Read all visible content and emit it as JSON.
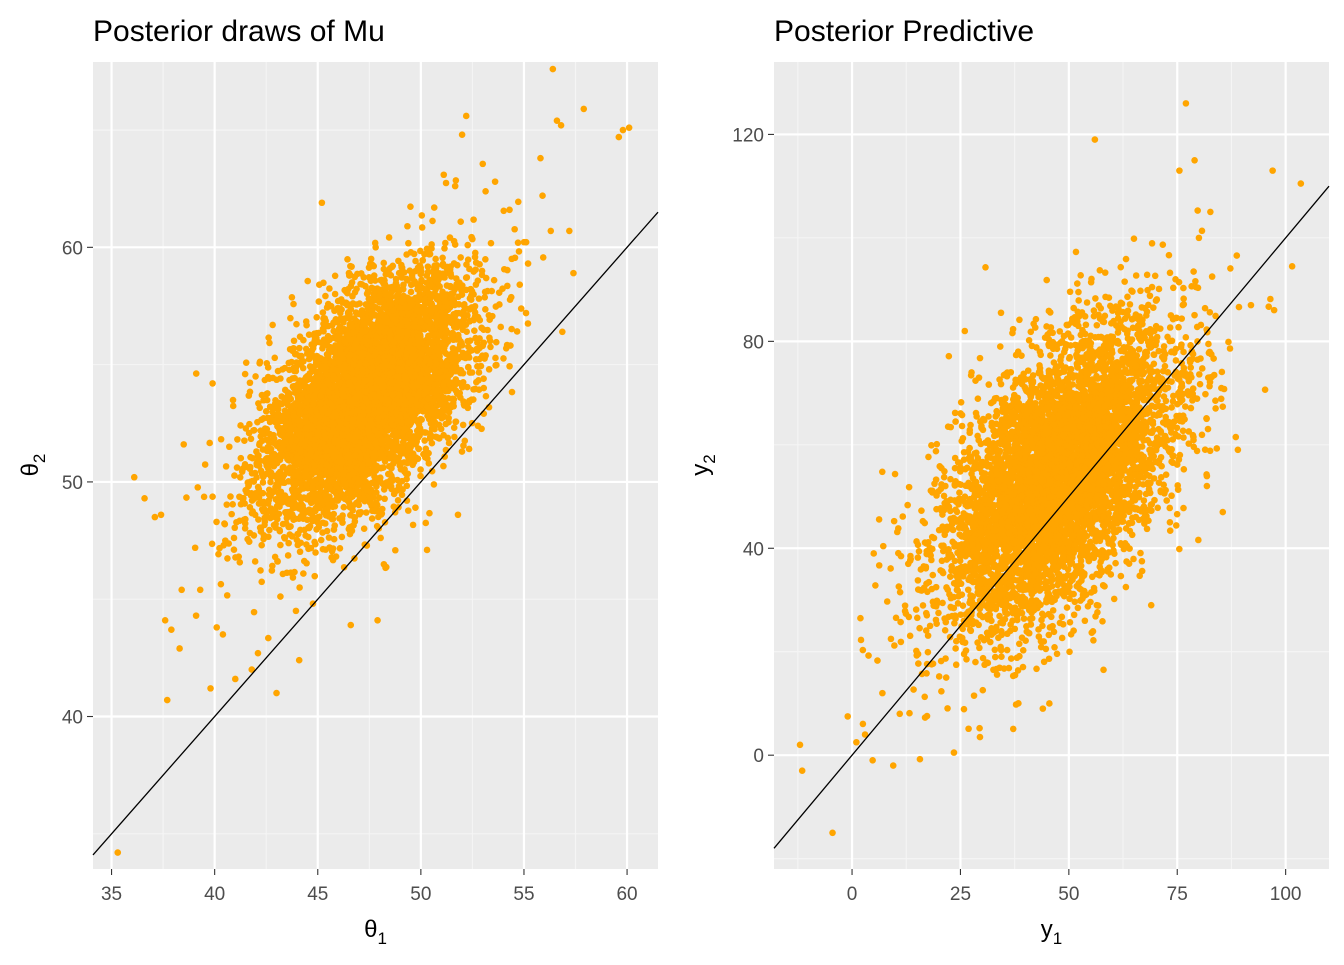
{
  "colors": {
    "panel_background": "#ebebeb",
    "grid_major": "#ffffff",
    "grid_minor": "#f5f5f5",
    "points": "#ffa500",
    "reference_line": "#000000",
    "tick_text": "#4d4d4d",
    "title_text": "#000000"
  },
  "chart_data": [
    {
      "type": "scatter",
      "title": "Posterior draws of Mu",
      "xlabel": {
        "symbol": "θ",
        "subscript": "1"
      },
      "ylabel": {
        "symbol": "θ",
        "subscript": "2"
      },
      "xlim": [
        34.1,
        61.5
      ],
      "ylim": [
        33.5,
        67.9
      ],
      "xticks": [
        35,
        40,
        45,
        50,
        55,
        60
      ],
      "yticks": [
        40,
        50,
        60
      ],
      "grid": true,
      "reference_line": {
        "intercept": 0,
        "slope": 1
      },
      "cloud": {
        "n": 6000,
        "mean_x": 47.3,
        "mean_y": 53.6,
        "sd_x": 2.5,
        "sd_y": 2.6,
        "corr": 0.55
      },
      "points": [
        {
          "x": 35.3,
          "y": 34.2
        },
        {
          "x": 36.1,
          "y": 50.2
        },
        {
          "x": 36.6,
          "y": 49.3
        },
        {
          "x": 37.1,
          "y": 48.5
        },
        {
          "x": 37.4,
          "y": 48.6
        },
        {
          "x": 37.6,
          "y": 44.1
        },
        {
          "x": 37.7,
          "y": 40.7
        },
        {
          "x": 37.9,
          "y": 43.7
        },
        {
          "x": 38.3,
          "y": 42.9
        },
        {
          "x": 38.4,
          "y": 45.4
        },
        {
          "x": 38.5,
          "y": 51.6
        },
        {
          "x": 39.1,
          "y": 44.3
        },
        {
          "x": 39.3,
          "y": 45.4
        },
        {
          "x": 39.8,
          "y": 41.2
        },
        {
          "x": 39.9,
          "y": 54.2
        },
        {
          "x": 40.1,
          "y": 43.8
        },
        {
          "x": 40.4,
          "y": 43.5
        },
        {
          "x": 41.0,
          "y": 41.6
        },
        {
          "x": 41.8,
          "y": 42.0
        },
        {
          "x": 42.1,
          "y": 42.7
        },
        {
          "x": 43.0,
          "y": 41.0
        },
        {
          "x": 44.1,
          "y": 42.4
        },
        {
          "x": 45.2,
          "y": 61.9
        },
        {
          "x": 46.6,
          "y": 43.9
        },
        {
          "x": 47.9,
          "y": 44.1
        },
        {
          "x": 50.3,
          "y": 47.1
        },
        {
          "x": 51.8,
          "y": 48.6
        },
        {
          "x": 52.0,
          "y": 64.8
        },
        {
          "x": 52.2,
          "y": 65.6
        },
        {
          "x": 53.6,
          "y": 62.8
        },
        {
          "x": 54.3,
          "y": 61.6
        },
        {
          "x": 55.1,
          "y": 57.2
        },
        {
          "x": 55.8,
          "y": 63.8
        },
        {
          "x": 55.9,
          "y": 62.2
        },
        {
          "x": 56.3,
          "y": 60.7
        },
        {
          "x": 56.4,
          "y": 67.6
        },
        {
          "x": 56.6,
          "y": 65.4
        },
        {
          "x": 56.8,
          "y": 65.2
        },
        {
          "x": 57.2,
          "y": 60.7
        },
        {
          "x": 57.4,
          "y": 58.9
        },
        {
          "x": 57.9,
          "y": 65.9
        },
        {
          "x": 59.6,
          "y": 64.7
        },
        {
          "x": 59.8,
          "y": 65.0
        },
        {
          "x": 60.1,
          "y": 65.1
        }
      ]
    },
    {
      "type": "scatter",
      "title": "Posterior Predictive",
      "xlabel": {
        "symbol": "y",
        "subscript": "1"
      },
      "ylabel": {
        "symbol": "y",
        "subscript": "2"
      },
      "xlim": [
        -18,
        110
      ],
      "ylim": [
        -22,
        134
      ],
      "xticks": [
        0,
        25,
        50,
        75,
        100
      ],
      "yticks": [
        0,
        40,
        80,
        120
      ],
      "grid": true,
      "reference_line": {
        "intercept": 0,
        "slope": 1
      },
      "cloud": {
        "n": 6000,
        "mean_x": 47.5,
        "mean_y": 54.0,
        "sd_x": 13.5,
        "sd_y": 14.5,
        "corr": 0.55
      },
      "points": [
        {
          "x": -12,
          "y": 2
        },
        {
          "x": -11.5,
          "y": -3
        },
        {
          "x": -4.5,
          "y": -15
        },
        {
          "x": -1,
          "y": 7.5
        },
        {
          "x": 1,
          "y": 2.5
        },
        {
          "x": 3,
          "y": 4
        },
        {
          "x": 7,
          "y": 12
        },
        {
          "x": 9.5,
          "y": -2
        },
        {
          "x": 11,
          "y": 8
        },
        {
          "x": 23.5,
          "y": 0.5
        },
        {
          "x": 29.5,
          "y": 3.5
        },
        {
          "x": 44,
          "y": 9
        },
        {
          "x": 56,
          "y": 119
        },
        {
          "x": 77,
          "y": 126
        },
        {
          "x": 75.5,
          "y": 113
        },
        {
          "x": 79,
          "y": 115
        },
        {
          "x": 97,
          "y": 113
        },
        {
          "x": 103.5,
          "y": 110.5
        },
        {
          "x": 101.5,
          "y": 94.5
        },
        {
          "x": 85.5,
          "y": 47
        },
        {
          "x": 88.5,
          "y": 61.5
        },
        {
          "x": 69,
          "y": 29
        },
        {
          "x": 58,
          "y": 16.5
        },
        {
          "x": 26,
          "y": 82
        },
        {
          "x": 18,
          "y": 25
        },
        {
          "x": 5,
          "y": 39
        },
        {
          "x": 80,
          "y": 100
        },
        {
          "x": 92,
          "y": 87
        }
      ]
    }
  ]
}
